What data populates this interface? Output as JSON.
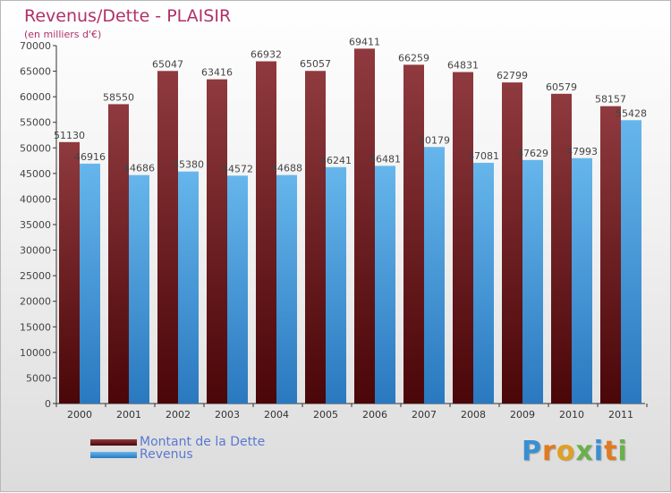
{
  "header": {
    "title": "Revenus/Dette - PLAISIR",
    "subtitle": "(en milliers d'€)"
  },
  "logo": {
    "text": "Proxiti",
    "letter_colors": [
      "#3a8fd0",
      "#e07a20",
      "#e0a020",
      "#6ab04c",
      "#3a8fd0",
      "#e07a20",
      "#6ab04c"
    ]
  },
  "chart_data": {
    "type": "bar",
    "categories": [
      "2000",
      "2001",
      "2002",
      "2003",
      "2004",
      "2005",
      "2006",
      "2007",
      "2008",
      "2009",
      "2010",
      "2011"
    ],
    "series": [
      {
        "name": "Montant de la Dette",
        "color": "#7a1a1e",
        "values": [
          51130,
          58550,
          65047,
          63416,
          66932,
          65057,
          69411,
          66259,
          64831,
          62799,
          60579,
          58157
        ]
      },
      {
        "name": "Revenus",
        "color": "#4a9ee0",
        "values": [
          46916,
          44686,
          45380,
          44572,
          44688,
          46241,
          46481,
          50179,
          47081,
          47629,
          47993,
          55428
        ]
      }
    ],
    "ylim": [
      0,
      70000
    ],
    "yticks": [
      0,
      5000,
      10000,
      15000,
      20000,
      25000,
      30000,
      35000,
      40000,
      45000,
      50000,
      55000,
      60000,
      65000,
      70000
    ],
    "grid": false,
    "legend": "bottom-left"
  }
}
